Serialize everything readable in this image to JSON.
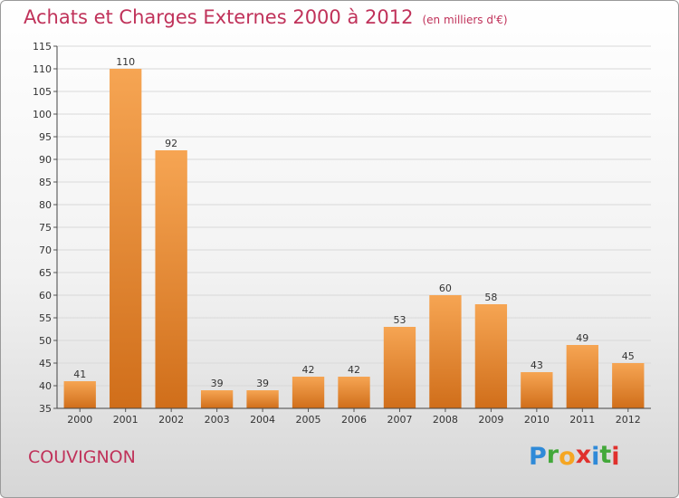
{
  "header": {
    "title": "Achats et Charges Externes 2000 à 2012",
    "subtitle": "(en milliers d'€)"
  },
  "footer": {
    "commune": "COUVIGNON",
    "logo_text": [
      "P",
      "r",
      "o",
      "x",
      "i",
      "t",
      "i"
    ],
    "logo_colors": [
      "#2f8ad8",
      "#43a83a",
      "#f5a623",
      "#e0312d",
      "#2f8ad8",
      "#43a83a",
      "#e0312d"
    ]
  },
  "chart_data": {
    "type": "bar",
    "title": "Achats et Charges Externes 2000 à 2012",
    "subtitle": "(en milliers d'€)",
    "xlabel": "",
    "ylabel": "",
    "categories": [
      "2000",
      "2001",
      "2002",
      "2003",
      "2004",
      "2005",
      "2006",
      "2007",
      "2008",
      "2009",
      "2010",
      "2011",
      "2012"
    ],
    "values": [
      41,
      110,
      92,
      39,
      39,
      42,
      42,
      53,
      60,
      58,
      43,
      49,
      45
    ],
    "ylim": [
      35,
      115
    ],
    "yticks": [
      35,
      40,
      45,
      50,
      55,
      60,
      65,
      70,
      75,
      80,
      85,
      90,
      95,
      100,
      105,
      110,
      115
    ],
    "grid": true,
    "bar_color_top": "#f6a553",
    "bar_color_bottom": "#d06e1a",
    "text_color": "#c0325a"
  }
}
